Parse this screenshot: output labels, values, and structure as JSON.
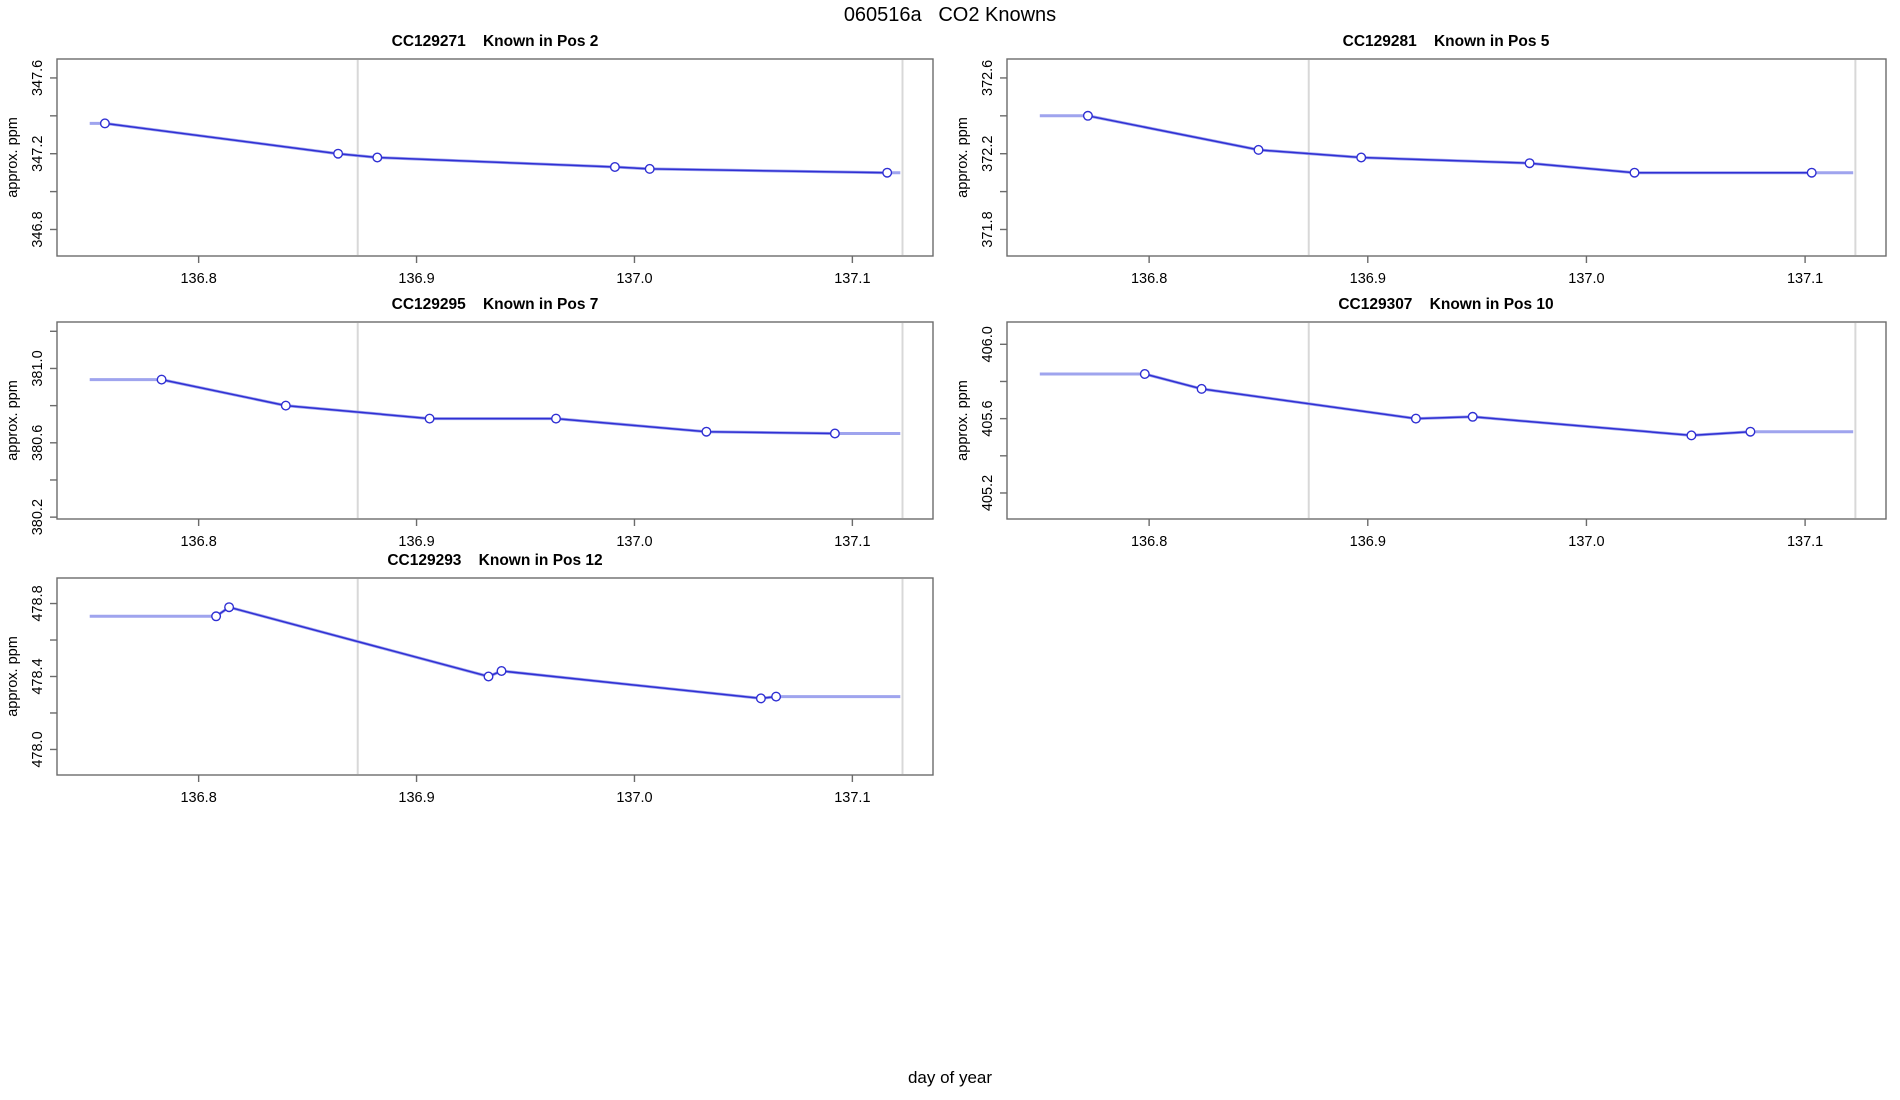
{
  "figure": {
    "title": "060516a   CO2 Knowns",
    "xlabel": "day of year",
    "ylabel": "approx. ppm"
  },
  "colors": {
    "series_dark": "#2f2fd3",
    "series_light": "#9fa4ee",
    "reference_line": "#d8d8d8",
    "axis_box": "#6b6b6b",
    "text": "#000000"
  },
  "chart_data": {
    "type": "line",
    "title": "060516a   CO2 Knowns",
    "xlabel": "day of year",
    "ylabel": "approx. ppm",
    "legend": "none",
    "grid": "off",
    "xlim": [
      136.735,
      137.137
    ],
    "x_ticks": [
      136.8,
      136.9,
      137.0,
      137.1
    ],
    "x_tick_labels": [
      "136.8",
      "136.9",
      "137.0",
      "137.1"
    ],
    "vlines": [
      136.873,
      137.123
    ],
    "trace_extent_x": [
      136.75,
      137.122
    ],
    "panels": [
      {
        "id": "CC129271",
        "title": "CC129271    Known in Pos 2",
        "ylim": [
          346.66,
          347.7
        ],
        "y_ticks": [
          346.8,
          347.2,
          347.6
        ],
        "y_tick_labels": [
          "346.8",
          "347.2",
          "347.6"
        ],
        "y_minor_ticks": [
          347.0,
          347.4
        ],
        "x": [
          136.757,
          136.864,
          136.882,
          136.991,
          137.007,
          137.116
        ],
        "y": [
          347.36,
          347.2,
          347.18,
          347.13,
          347.12,
          347.1
        ]
      },
      {
        "id": "CC129281",
        "title": "CC129281    Known in Pos 5",
        "ylim": [
          371.66,
          372.7
        ],
        "y_ticks": [
          371.8,
          372.2,
          372.6
        ],
        "y_tick_labels": [
          "371.8",
          "372.2",
          "372.6"
        ],
        "y_minor_ticks": [
          372.0,
          372.4
        ],
        "x": [
          136.772,
          136.85,
          136.897,
          136.974,
          137.022,
          137.103
        ],
        "y": [
          372.4,
          372.22,
          372.18,
          372.15,
          372.1,
          372.1
        ]
      },
      {
        "id": "CC129295",
        "title": "CC129295    Known in Pos 7",
        "ylim": [
          380.19,
          381.25
        ],
        "y_ticks": [
          380.2,
          380.6,
          381.0
        ],
        "y_tick_labels": [
          "380.2",
          "380.6",
          "381.0"
        ],
        "y_minor_ticks": [
          380.4,
          380.8,
          381.2
        ],
        "x": [
          136.783,
          136.84,
          136.906,
          136.964,
          137.033,
          137.092
        ],
        "y": [
          380.94,
          380.8,
          380.73,
          380.73,
          380.66,
          380.65
        ]
      },
      {
        "id": "CC129307",
        "title": "CC129307    Known in Pos 10",
        "ylim": [
          405.06,
          406.12
        ],
        "y_ticks": [
          405.2,
          405.6,
          406.0
        ],
        "y_tick_labels": [
          "405.2",
          "405.6",
          "406.0"
        ],
        "y_minor_ticks": [
          405.4,
          405.8
        ],
        "x": [
          136.798,
          136.824,
          136.922,
          136.948,
          137.048,
          137.075
        ],
        "y": [
          405.84,
          405.76,
          405.6,
          405.61,
          405.51,
          405.53
        ]
      },
      {
        "id": "CC129293",
        "title": "CC129293    Known in Pos 12",
        "ylim": [
          477.86,
          478.94
        ],
        "y_ticks": [
          478.0,
          478.4,
          478.8
        ],
        "y_tick_labels": [
          "478.0",
          "478.4",
          "478.8"
        ],
        "y_minor_ticks": [
          478.2,
          478.6
        ],
        "x": [
          136.808,
          136.814,
          136.933,
          136.939,
          137.058,
          137.065
        ],
        "y": [
          478.73,
          478.78,
          478.4,
          478.43,
          478.28,
          478.29
        ]
      }
    ]
  }
}
